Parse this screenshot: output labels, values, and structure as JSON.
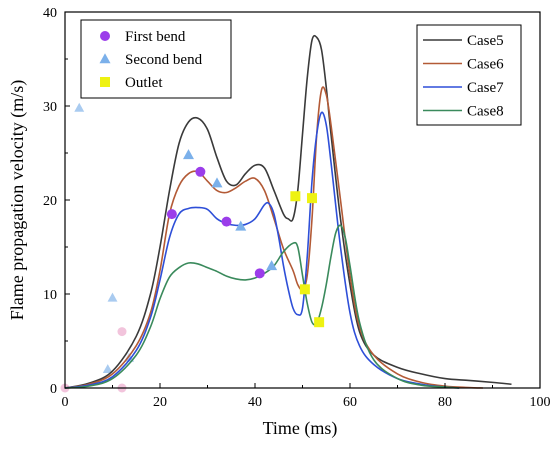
{
  "chart_data": {
    "type": "line",
    "xlabel": "Time (ms)",
    "ylabel": "Flame propagation velocity (m/s)",
    "xlim": [
      0,
      100
    ],
    "ylim": [
      0,
      40
    ],
    "xticks": [
      0,
      20,
      40,
      60,
      80,
      100
    ],
    "yticks": [
      0,
      10,
      20,
      30,
      40
    ],
    "grid": false,
    "series": [
      {
        "name": "Case5",
        "color": "#3a3a3a",
        "x": [
          0,
          5,
          10,
          15,
          18,
          20,
          22,
          24,
          26,
          28,
          30,
          32,
          34,
          36,
          38,
          40,
          42,
          44,
          46,
          47,
          48,
          49,
          50,
          51,
          52,
          53,
          54,
          55,
          56,
          58,
          60,
          62,
          65,
          70,
          75,
          80,
          85,
          90,
          94
        ],
        "y": [
          0,
          0.5,
          1.8,
          5.5,
          10,
          15,
          21,
          26,
          28.3,
          28.7,
          27.5,
          24.5,
          22,
          21.6,
          22.8,
          23.7,
          23.4,
          21,
          18.5,
          18,
          18,
          21,
          27,
          33,
          37,
          37.3,
          36,
          32,
          27,
          18,
          11,
          6,
          3.5,
          2.2,
          1.5,
          1.0,
          0.8,
          0.6,
          0.4
        ]
      },
      {
        "name": "Case6",
        "color": "#b35a36",
        "x": [
          0,
          5,
          10,
          15,
          18,
          20,
          22,
          24,
          26,
          28,
          30,
          32,
          34,
          36,
          38,
          40,
          42,
          44,
          46,
          48,
          49,
          50,
          51,
          52,
          53,
          54,
          55,
          56,
          58,
          60,
          62,
          65,
          70,
          75,
          80,
          85,
          88
        ],
        "y": [
          0,
          0.4,
          1.5,
          4.5,
          8,
          12.5,
          18.5,
          21.5,
          22.8,
          23,
          22,
          21,
          20.8,
          21.3,
          22,
          22.3,
          21,
          18,
          14.8,
          12.5,
          11,
          10.5,
          12,
          18,
          27,
          31.7,
          31.2,
          28,
          20,
          12,
          6.5,
          3.5,
          1.5,
          0.6,
          0.2,
          0.05,
          0
        ]
      },
      {
        "name": "Case7",
        "color": "#2e4fd8",
        "x": [
          0,
          5,
          10,
          15,
          18,
          20,
          22,
          24,
          26,
          28,
          30,
          32,
          34,
          36,
          38,
          40,
          42,
          43,
          44,
          45,
          46,
          47,
          48,
          49,
          50,
          51,
          52,
          53,
          54,
          55,
          56,
          58,
          60,
          62,
          65,
          70,
          75,
          80,
          83
        ],
        "y": [
          0,
          0.3,
          1.2,
          4,
          7.5,
          11.5,
          16,
          18.5,
          19.1,
          19.2,
          19,
          18,
          17.5,
          17.3,
          17.4,
          18,
          19.5,
          19.6,
          18.5,
          16,
          13,
          10.5,
          8.5,
          7.8,
          8.5,
          14,
          22,
          27,
          29.3,
          28,
          24,
          15,
          8,
          4.5,
          2.5,
          1,
          0.4,
          0.1,
          0
        ]
      },
      {
        "name": "Case8",
        "color": "#3a8a5c",
        "x": [
          0,
          5,
          10,
          15,
          18,
          20,
          22,
          24,
          26,
          28,
          30,
          32,
          34,
          36,
          38,
          40,
          42,
          44,
          46,
          48,
          49,
          50,
          51,
          52,
          53,
          54,
          55,
          56,
          57,
          58,
          59,
          60,
          62,
          65,
          70,
          75,
          80,
          83
        ],
        "y": [
          0,
          0.2,
          1,
          3.5,
          6.5,
          9.5,
          11.8,
          12.8,
          13.3,
          13.2,
          12.8,
          12.4,
          11.9,
          11.6,
          11.5,
          11.7,
          12.2,
          13,
          14.5,
          15.4,
          15,
          12,
          9,
          7,
          6.9,
          8.5,
          11,
          14,
          16.5,
          17.3,
          16,
          13,
          7,
          3,
          1,
          0.3,
          0.1,
          0
        ]
      }
    ],
    "markers": [
      {
        "name": "First bend",
        "shape": "circle",
        "color": "#9b3dea",
        "points": [
          [
            22.5,
            18.5
          ],
          [
            28.5,
            23
          ],
          [
            34,
            17.7
          ],
          [
            41,
            12.2
          ]
        ]
      },
      {
        "name": "Second bend",
        "shape": "triangle",
        "color": "#7bb0ea",
        "points": [
          [
            26,
            24.8
          ],
          [
            32,
            21.8
          ],
          [
            37,
            17.2
          ],
          [
            43.5,
            13
          ]
        ]
      },
      {
        "name": "Outlet",
        "shape": "square",
        "color": "#eef212",
        "points": [
          [
            48.5,
            20.4
          ],
          [
            52,
            20.2
          ],
          [
            50.5,
            10.5
          ],
          [
            53.5,
            7
          ]
        ]
      }
    ],
    "ghost_markers": [
      {
        "shape": "circle",
        "color": "#f2c4dc",
        "points": [
          [
            5,
            34
          ],
          [
            12,
            6
          ],
          [
            12,
            0
          ],
          [
            0,
            0
          ]
        ]
      },
      {
        "shape": "triangle",
        "color": "#a9cbf0",
        "points": [
          [
            3,
            29.8
          ],
          [
            10,
            9.6
          ],
          [
            13.5,
            3.2
          ],
          [
            9,
            2
          ]
        ]
      }
    ],
    "legends": [
      {
        "position": "top-left",
        "entries": [
          "First bend",
          "Second bend",
          "Outlet"
        ]
      },
      {
        "position": "top-right",
        "entries": [
          "Case5",
          "Case6",
          "Case7",
          "Case8"
        ]
      }
    ]
  }
}
